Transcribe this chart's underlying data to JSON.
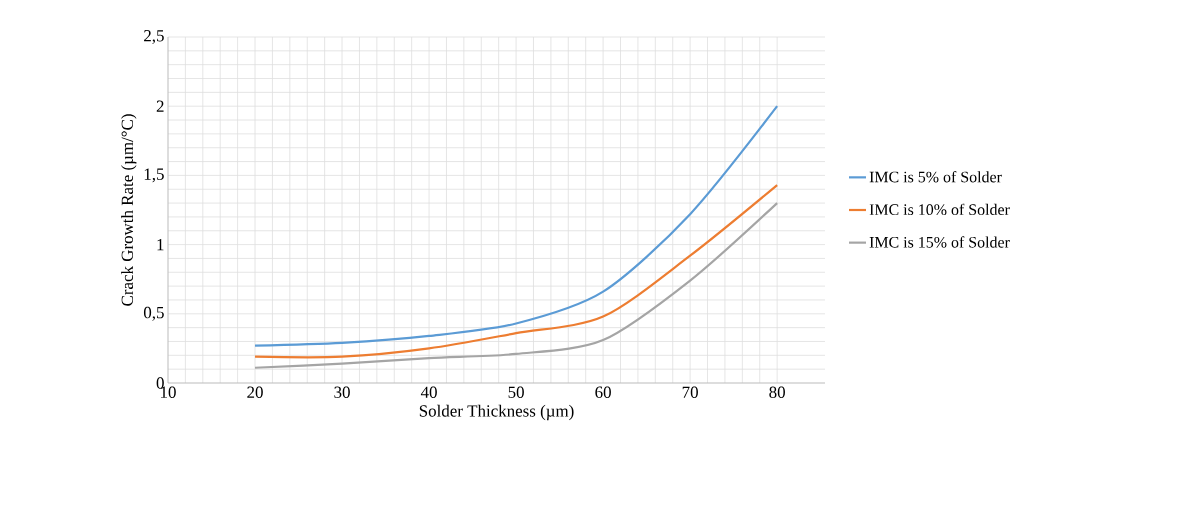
{
  "chart_data": {
    "type": "line",
    "xlabel": "Solder Thickness (µm)",
    "ylabel": "Crack Growth Rate (µm/°C)",
    "x": [
      20,
      30,
      40,
      50,
      60,
      70,
      80
    ],
    "series": [
      {
        "name": "IMC is 5% of Solder",
        "color": "#5b9bd5",
        "values": [
          0.27,
          0.29,
          0.34,
          0.43,
          0.66,
          1.22,
          2.0
        ]
      },
      {
        "name": "IMC is 10% of Solder",
        "color": "#ed7d31",
        "values": [
          0.19,
          0.19,
          0.25,
          0.36,
          0.48,
          0.92,
          1.43
        ]
      },
      {
        "name": "IMC is 15% of Solder",
        "color": "#a5a5a5",
        "values": [
          0.11,
          0.14,
          0.18,
          0.21,
          0.31,
          0.74,
          1.3
        ]
      }
    ],
    "xlim": [
      10,
      85.5
    ],
    "xticks": [
      10,
      20,
      30,
      40,
      50,
      60,
      70,
      80
    ],
    "ylim": [
      0,
      2.5
    ],
    "yticks": [
      0,
      {
        "value": 0.5,
        "label": "0,5"
      },
      1,
      {
        "value": 1.5,
        "label": "1,5"
      },
      2,
      {
        "value": 2.5,
        "label": "2,5"
      }
    ],
    "grid": true,
    "legend": "right",
    "marker": "none",
    "line_style": "solid"
  }
}
